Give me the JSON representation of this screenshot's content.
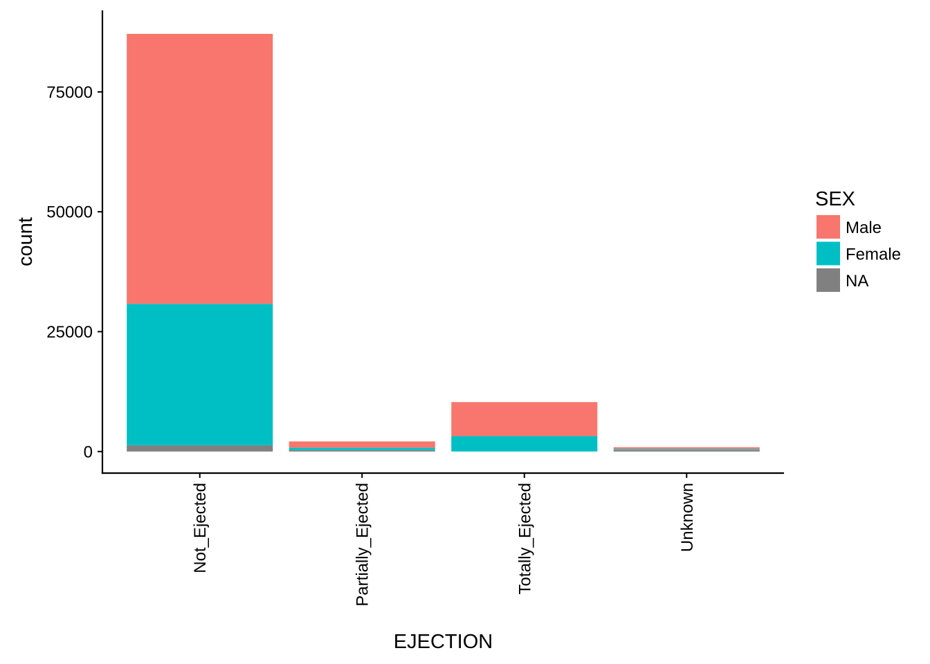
{
  "chart_data": {
    "type": "bar",
    "stacked": true,
    "xlabel": "EJECTION",
    "ylabel": "count",
    "categories": [
      "Not_Ejected",
      "Partially_Ejected",
      "Totally_Ejected",
      "Unknown"
    ],
    "series": [
      {
        "name": "Male",
        "color": "#F8766D",
        "values": [
          56300,
          1300,
          7100,
          400
        ]
      },
      {
        "name": "Female",
        "color": "#00BFC4",
        "values": [
          29500,
          500,
          3200,
          200
        ]
      },
      {
        "name": "NA",
        "color": "#808080",
        "values": [
          1300,
          300,
          10,
          300
        ]
      }
    ],
    "stack_order": "Male on top, Female middle, NA at bottom",
    "yticks": [
      0,
      25000,
      50000,
      75000
    ],
    "ytick_labels": [
      "0",
      "25000",
      "50000",
      "75000"
    ],
    "ylim": [
      -4500,
      92000
    ],
    "legend": {
      "title": "SEX",
      "position": "right",
      "entries": [
        "Male",
        "Female",
        "NA"
      ]
    },
    "grid": false
  }
}
